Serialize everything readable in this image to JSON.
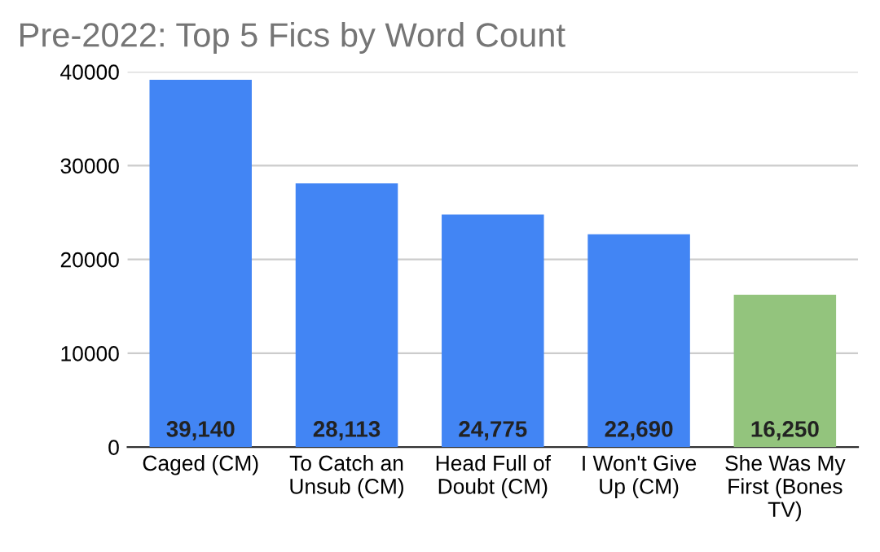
{
  "chart_data": {
    "type": "bar",
    "title": "Pre-2022: Top 5 Fics by Word Count",
    "categories": [
      "Caged (CM)",
      "To Catch an\nUnsub (CM)",
      "Head Full of\nDoubt (CM)",
      "I Won't Give\nUp (CM)",
      "She Was My\nFirst (Bones\nTV)"
    ],
    "values": [
      39140,
      28113,
      24775,
      22690,
      16250
    ],
    "value_labels": [
      "39,140",
      "28,113",
      "24,775",
      "22,690",
      "16,250"
    ],
    "colors": [
      "#4285f4",
      "#4285f4",
      "#4285f4",
      "#4285f4",
      "#93c47d"
    ],
    "ylim": [
      0,
      40000
    ],
    "yticks": [
      0,
      10000,
      20000,
      30000,
      40000
    ],
    "grid": "y",
    "legend": false
  }
}
